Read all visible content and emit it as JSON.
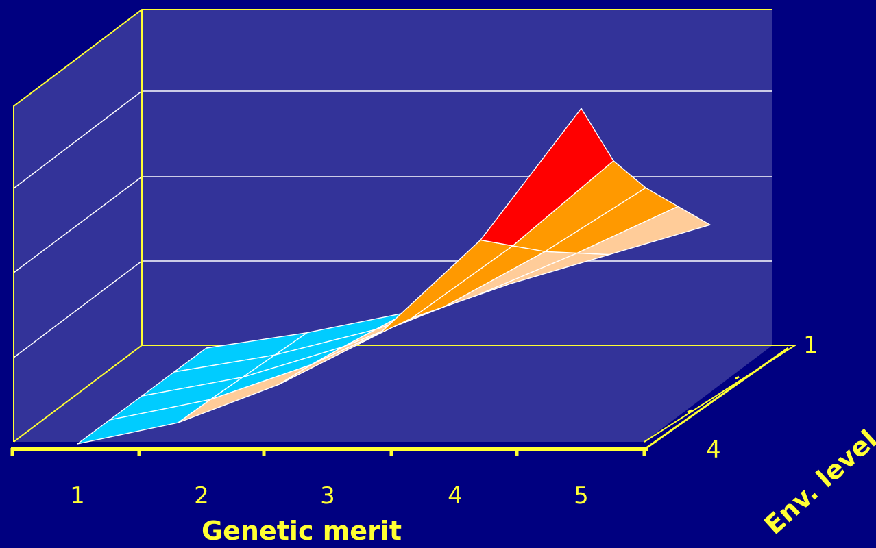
{
  "chart_data": {
    "type": "surface",
    "xlabel": "Genetic merit",
    "zlabel": "Env. level",
    "x_ticks": [
      "1",
      "2",
      "3",
      "4",
      "5"
    ],
    "z_ticks": [
      "1",
      "4"
    ],
    "grid": true,
    "band_colors": [
      "#00ccff",
      "#ffcc99",
      "#ff9900",
      "#ff0000"
    ],
    "back_wall_color": "#333399",
    "frame_color": "#ffff33",
    "surface_rows": [
      [
        0.0,
        0.25,
        0.7,
        1.3,
        2.4,
        3.95
      ],
      [
        0.0,
        0.24,
        0.65,
        1.2,
        2.05,
        3.05
      ],
      [
        0.0,
        0.22,
        0.58,
        1.05,
        1.7,
        2.45
      ],
      [
        0.0,
        0.2,
        0.5,
        0.9,
        1.4,
        1.95
      ],
      [
        0.0,
        0.18,
        0.42,
        0.75,
        1.1,
        1.45
      ]
    ]
  }
}
